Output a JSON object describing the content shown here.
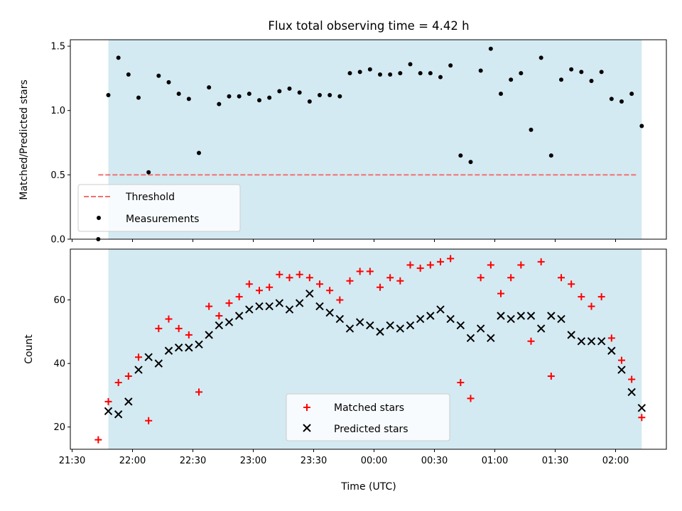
{
  "chart_data": [
    {
      "type": "scatter",
      "title": "Flux total observing time = 4.42 h",
      "xlabel": "",
      "ylabel": "Matched/Predicted stars",
      "ylim": [
        0,
        1.55
      ],
      "yticks": [
        "0.0",
        "0.5",
        "1.0",
        "1.5"
      ],
      "shaded_span": [
        "21:48",
        "02:13"
      ],
      "threshold": {
        "name": "Threshold",
        "value": 0.5,
        "x_range": [
          "21:43",
          "02:11"
        ],
        "color": "#f07070",
        "style": "dashed"
      },
      "legend": {
        "position": "lower left",
        "entries": [
          "Threshold",
          "Measurements"
        ]
      },
      "series": [
        {
          "name": "Measurements",
          "color": "#000000",
          "x": [
            "21:43",
            "21:48",
            "21:53",
            "21:58",
            "22:03",
            "22:08",
            "22:13",
            "22:18",
            "22:23",
            "22:28",
            "22:33",
            "22:38",
            "22:43",
            "22:48",
            "22:53",
            "22:58",
            "23:03",
            "23:08",
            "23:13",
            "23:18",
            "23:23",
            "23:28",
            "23:33",
            "23:38",
            "23:43",
            "23:48",
            "23:53",
            "23:58",
            "00:03",
            "00:08",
            "00:13",
            "00:18",
            "00:23",
            "00:28",
            "00:33",
            "00:38",
            "00:43",
            "00:48",
            "00:53",
            "00:58",
            "01:03",
            "01:08",
            "01:13",
            "01:18",
            "01:23",
            "01:28",
            "01:33",
            "01:38",
            "01:43",
            "01:48",
            "01:53",
            "01:58",
            "02:03",
            "02:08",
            "02:13"
          ],
          "values": [
            0.0,
            1.12,
            1.41,
            1.28,
            1.1,
            0.52,
            1.27,
            1.22,
            1.13,
            1.09,
            0.67,
            1.18,
            1.05,
            1.11,
            1.11,
            1.13,
            1.08,
            1.1,
            1.15,
            1.17,
            1.14,
            1.07,
            1.12,
            1.12,
            1.11,
            1.29,
            1.3,
            1.32,
            1.28,
            1.28,
            1.29,
            1.36,
            1.29,
            1.29,
            1.26,
            1.35,
            0.65,
            0.6,
            1.31,
            1.48,
            1.13,
            1.24,
            1.29,
            0.85,
            1.41,
            0.65,
            1.24,
            1.32,
            1.3,
            1.23,
            1.3,
            1.09,
            1.07,
            1.13,
            0.88
          ]
        }
      ]
    },
    {
      "type": "scatter",
      "xlabel": "Time (UTC)",
      "ylabel": "Count",
      "ylim": [
        13,
        76
      ],
      "yticks": [
        "20",
        "40",
        "60"
      ],
      "xticks": [
        "21:30",
        "22:00",
        "22:30",
        "23:00",
        "23:30",
        "00:00",
        "00:30",
        "01:00",
        "01:30",
        "02:00"
      ],
      "shaded_span": [
        "21:48",
        "02:13"
      ],
      "legend": {
        "position": "lower center",
        "entries": [
          "Matched stars",
          "Predicted stars"
        ]
      },
      "series": [
        {
          "name": "Matched stars",
          "marker": "+",
          "color": "#ff0000",
          "x": [
            "21:43",
            "21:48",
            "21:53",
            "21:58",
            "22:03",
            "22:08",
            "22:13",
            "22:18",
            "22:23",
            "22:28",
            "22:33",
            "22:38",
            "22:43",
            "22:48",
            "22:53",
            "22:58",
            "23:03",
            "23:08",
            "23:13",
            "23:18",
            "23:23",
            "23:28",
            "23:33",
            "23:38",
            "23:43",
            "23:48",
            "23:53",
            "23:58",
            "00:03",
            "00:08",
            "00:13",
            "00:18",
            "00:23",
            "00:28",
            "00:33",
            "00:38",
            "00:43",
            "00:48",
            "00:53",
            "00:58",
            "01:03",
            "01:08",
            "01:13",
            "01:18",
            "01:23",
            "01:28",
            "01:33",
            "01:38",
            "01:43",
            "01:48",
            "01:53",
            "01:58",
            "02:03",
            "02:08",
            "02:13"
          ],
          "values": [
            16,
            28,
            34,
            36,
            42,
            22,
            51,
            54,
            51,
            49,
            31,
            58,
            55,
            59,
            61,
            65,
            63,
            64,
            68,
            67,
            68,
            67,
            65,
            63,
            60,
            66,
            69,
            69,
            64,
            67,
            66,
            71,
            70,
            71,
            72,
            73,
            34,
            29,
            67,
            71,
            62,
            67,
            71,
            47,
            72,
            36,
            67,
            65,
            61,
            58,
            61,
            48,
            41,
            35,
            23
          ]
        },
        {
          "name": "Predicted stars",
          "marker": "x",
          "color": "#000000",
          "x": [
            "21:48",
            "21:53",
            "21:58",
            "22:03",
            "22:08",
            "22:13",
            "22:18",
            "22:23",
            "22:28",
            "22:33",
            "22:38",
            "22:43",
            "22:48",
            "22:53",
            "22:58",
            "23:03",
            "23:08",
            "23:13",
            "23:18",
            "23:23",
            "23:28",
            "23:33",
            "23:38",
            "23:43",
            "23:48",
            "23:53",
            "23:58",
            "00:03",
            "00:08",
            "00:13",
            "00:18",
            "00:23",
            "00:28",
            "00:33",
            "00:38",
            "00:43",
            "00:48",
            "00:53",
            "00:58",
            "01:03",
            "01:08",
            "01:13",
            "01:18",
            "01:23",
            "01:28",
            "01:33",
            "01:38",
            "01:43",
            "01:48",
            "01:53",
            "01:58",
            "02:03",
            "02:08",
            "02:13"
          ],
          "values": [
            25,
            24,
            28,
            38,
            42,
            40,
            44,
            45,
            45,
            46,
            49,
            52,
            53,
            55,
            57,
            58,
            58,
            59,
            57,
            59,
            62,
            58,
            56,
            54,
            51,
            53,
            52,
            50,
            52,
            51,
            52,
            54,
            55,
            57,
            54,
            52,
            48,
            51,
            48,
            55,
            54,
            55,
            55,
            51,
            55,
            54,
            49,
            47,
            47,
            47,
            44,
            38,
            31,
            26
          ]
        }
      ]
    }
  ]
}
